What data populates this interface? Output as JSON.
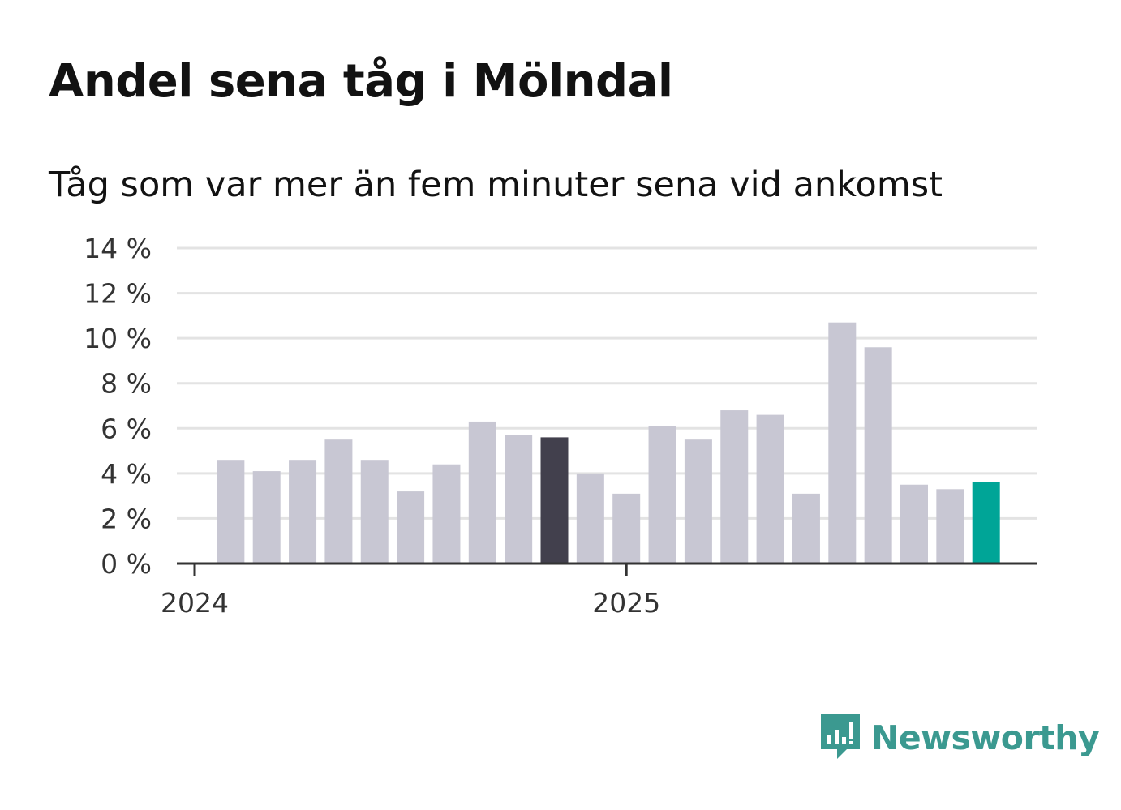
{
  "title": "Andel sena tåg i Mölndal",
  "subtitle": "Tåg som var mer än fem minuter sena vid ankomst",
  "brand": {
    "name": "Newsworthy",
    "icon": "newsworthy-logo-icon",
    "color": "#3b9990"
  },
  "colors": {
    "bar_default": "#c8c7d3",
    "bar_highlight_previous_year": "#42404d",
    "bar_highlight_latest": "#00a597",
    "gridline": "#e3e3e3",
    "axis": "#333333",
    "text": "#121212"
  },
  "chart_data": {
    "type": "bar",
    "title": "Andel sena tåg i Mölndal",
    "subtitle": "Tåg som var mer än fem minuter sena vid ankomst",
    "xlabel": "",
    "ylabel": "",
    "ylim": [
      0,
      14
    ],
    "y_ticks": [
      0,
      2,
      4,
      6,
      8,
      10,
      12,
      14
    ],
    "y_tick_labels": [
      "0 %",
      "2 %",
      "4 %",
      "6 %",
      "8 %",
      "10 %",
      "12 %",
      "14 %"
    ],
    "x_tick_labels": [
      {
        "label": "2024",
        "index": 0
      },
      {
        "label": "2025",
        "index": 12
      }
    ],
    "grid": true,
    "categories": [
      "2024-01",
      "2024-02",
      "2024-03",
      "2024-04",
      "2024-05",
      "2024-06",
      "2024-07",
      "2024-08",
      "2024-09",
      "2024-10",
      "2024-11",
      "2024-12",
      "2025-01",
      "2025-02",
      "2025-03",
      "2025-04",
      "2025-05",
      "2025-06",
      "2025-07",
      "2025-08",
      "2025-09",
      "2025-10",
      "2025-11",
      "2025-12"
    ],
    "values": [
      null,
      4.6,
      4.1,
      4.6,
      5.5,
      4.6,
      3.2,
      4.4,
      6.3,
      5.7,
      5.6,
      4.0,
      3.1,
      6.1,
      5.5,
      6.8,
      6.6,
      3.1,
      10.7,
      9.6,
      3.5,
      3.3,
      3.6,
      null
    ],
    "highlights": {
      "2024-11": "previous_year",
      "2025-11": "latest"
    }
  }
}
